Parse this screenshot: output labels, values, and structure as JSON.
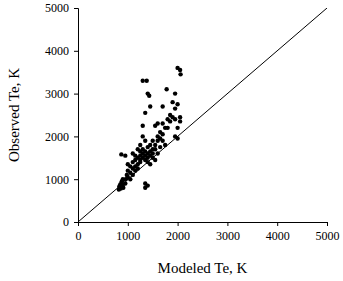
{
  "chart_data": {
    "type": "scatter",
    "x_label": "Modeled Te, K",
    "y_label": "Observed Te, K",
    "color": "#000000",
    "marker": "circle",
    "xlim": [
      0,
      5000
    ],
    "ylim": [
      0,
      5000
    ],
    "xticks": [
      0,
      1000,
      2000,
      3000,
      4000,
      5000
    ],
    "yticks": [
      0,
      1000,
      2000,
      3000,
      4000,
      5000
    ],
    "x": [
      820,
      840,
      850,
      860,
      880,
      900,
      830,
      870,
      910,
      850,
      880,
      900,
      950,
      960,
      1000,
      980,
      1000,
      1050,
      1050,
      1100,
      1100,
      1150,
      1150,
      1200,
      1200,
      1000,
      950,
      870,
      1100,
      1150,
      1200,
      1250,
      1250,
      1250,
      1300,
      1300,
      1300,
      1350,
      1350,
      1350,
      1400,
      1400,
      1400,
      1400,
      1450,
      1450,
      1450,
      1500,
      1500,
      1500,
      1500,
      1550,
      1550,
      1600,
      1600,
      1600,
      1650,
      1650,
      1700,
      1700,
      1750,
      1750,
      1600,
      1550,
      1350,
      1300,
      1250,
      1300,
      1300,
      1380,
      1400,
      1450,
      1430,
      1350,
      1350,
      1350,
      1400,
      2000,
      2050,
      2060,
      1950,
      1900,
      1950,
      2000,
      1850,
      1900,
      1950,
      2000,
      2050,
      2050,
      1800,
      1700,
      1780,
      1700,
      2000,
      1950,
      1850,
      1800,
      1200,
      1250,
      1150,
      1450,
      1550,
      1650,
      1100,
      1050
    ],
    "values": [
      760,
      800,
      820,
      780,
      850,
      870,
      830,
      900,
      800,
      880,
      950,
      1000,
      900,
      1000,
      1050,
      1100,
      1200,
      1000,
      1150,
      1100,
      1250,
      1300,
      1200,
      1350,
      1250,
      1350,
      1550,
      1580,
      1600,
      1450,
      1500,
      1400,
      1550,
      1650,
      1500,
      1600,
      1700,
      1450,
      1550,
      1650,
      1500,
      1600,
      1750,
      1400,
      1550,
      1650,
      1800,
      1500,
      1600,
      1700,
      1900,
      1800,
      1700,
      1600,
      1900,
      2000,
      1750,
      2100,
      2050,
      1900,
      2200,
      1800,
      2300,
      2250,
      1900,
      2000,
      1800,
      2250,
      3300,
      3300,
      3000,
      2700,
      2950,
      2550,
      800,
      900,
      850,
      3600,
      3550,
      3450,
      3000,
      2800,
      2650,
      2750,
      2500,
      2450,
      2400,
      2200,
      2450,
      2350,
      2400,
      2700,
      3100,
      2300,
      1950,
      2000,
      2350,
      2200,
      1700,
      1450,
      1550,
      1350,
      1450,
      1950,
      1400,
      1300
    ]
  }
}
